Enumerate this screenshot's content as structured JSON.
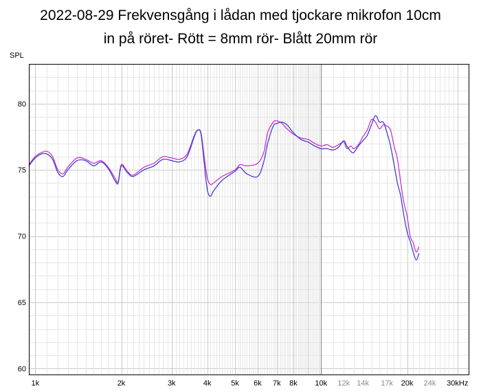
{
  "chart_data": {
    "type": "line",
    "title_lines": [
      "2022-08-29 Frekvensgång i lådan med tjockare mikrofon 10cm",
      "in på röret- Rött = 8mm rör- Blått 20mm rör"
    ],
    "ylabel": "SPL",
    "xlabel": "",
    "x_scale": "log",
    "xlim": [
      950,
      33000
    ],
    "ylim": [
      59.5,
      83
    ],
    "grid": true,
    "colors": {
      "red_series": "#cc33cc",
      "blue_series": "#4040cc",
      "grid_major": "#c8c8c8",
      "grid_minor": "#e6e6e6",
      "grid_10k": "#808080",
      "axis": "#000000"
    },
    "y_ticks": [
      {
        "value": 60,
        "label": "60"
      },
      {
        "value": 65,
        "label": "65"
      },
      {
        "value": 70,
        "label": "70"
      },
      {
        "value": 75,
        "label": "75"
      },
      {
        "value": 80,
        "label": "80"
      }
    ],
    "x_ticks": [
      {
        "value": 1000,
        "label": "1k",
        "style": "dark"
      },
      {
        "value": 2000,
        "label": "2k",
        "style": "dark"
      },
      {
        "value": 3000,
        "label": "3k",
        "style": "dark"
      },
      {
        "value": 4000,
        "label": "4k",
        "style": "dark"
      },
      {
        "value": 5000,
        "label": "5k",
        "style": "dark"
      },
      {
        "value": 6000,
        "label": "6k",
        "style": "dark"
      },
      {
        "value": 7000,
        "label": "7k",
        "style": "dark"
      },
      {
        "value": 8000,
        "label": "8k",
        "style": "dark"
      },
      {
        "value": 10000,
        "label": "10k",
        "style": "dark"
      },
      {
        "value": 12000,
        "label": "12k",
        "style": "grey"
      },
      {
        "value": 14000,
        "label": "14k",
        "style": "grey"
      },
      {
        "value": 17000,
        "label": "17k",
        "style": "grey"
      },
      {
        "value": 20000,
        "label": "20k",
        "style": "dark"
      },
      {
        "value": 24000,
        "label": "24k",
        "style": "grey"
      },
      {
        "value": 30000,
        "label": "30kHz",
        "style": "dark"
      }
    ],
    "series": [
      {
        "color_key": "red_series",
        "x": [
          950,
          1000,
          1050,
          1100,
          1150,
          1200,
          1250,
          1300,
          1400,
          1500,
          1600,
          1700,
          1800,
          1900,
          1950,
          2000,
          2100,
          2200,
          2400,
          2600,
          2800,
          3000,
          3200,
          3400,
          3600,
          3700,
          3800,
          3900,
          4000,
          4100,
          4200,
          4500,
          5000,
          5200,
          5500,
          6000,
          6300,
          6500,
          6800,
          7000,
          7300,
          7600,
          8000,
          8500,
          9000,
          9500,
          10000,
          10500,
          11000,
          11500,
          12000,
          12300,
          12700,
          13000,
          13500,
          14000,
          14500,
          15000,
          15500,
          16000,
          16500,
          17000,
          17500,
          18000,
          18500,
          19000,
          19500,
          20000,
          20500,
          21000,
          21500,
          22000
        ],
        "y": [
          75.4,
          76.0,
          76.3,
          76.4,
          76.0,
          75.0,
          74.7,
          75.2,
          75.9,
          75.8,
          75.5,
          75.7,
          75.2,
          74.4,
          74.1,
          75.4,
          74.9,
          74.6,
          75.2,
          75.5,
          76.0,
          75.9,
          75.8,
          76.2,
          77.6,
          78.0,
          77.8,
          76.0,
          74.4,
          73.9,
          74.0,
          74.5,
          75.0,
          75.4,
          75.3,
          75.5,
          76.3,
          77.8,
          78.6,
          78.7,
          78.5,
          78.1,
          77.7,
          77.4,
          77.3,
          77.0,
          76.8,
          76.9,
          76.7,
          76.9,
          77.1,
          76.6,
          76.8,
          76.6,
          76.9,
          77.5,
          78.0,
          78.8,
          78.6,
          78.1,
          78.4,
          78.3,
          78.0,
          76.8,
          75.8,
          74.0,
          72.5,
          71.5,
          70.0,
          69.5,
          68.8,
          69.2
        ]
      },
      {
        "color_key": "blue_series",
        "x": [
          950,
          1000,
          1050,
          1100,
          1150,
          1200,
          1250,
          1300,
          1400,
          1500,
          1600,
          1700,
          1800,
          1900,
          1950,
          2000,
          2100,
          2200,
          2400,
          2600,
          2800,
          3000,
          3200,
          3400,
          3600,
          3700,
          3800,
          3900,
          4000,
          4100,
          4200,
          4500,
          5000,
          5200,
          5500,
          6000,
          6300,
          6500,
          6800,
          7000,
          7300,
          7600,
          8000,
          8500,
          9000,
          9500,
          10000,
          10500,
          11000,
          11500,
          12000,
          12300,
          12700,
          13000,
          13500,
          14000,
          14500,
          15000,
          15500,
          16000,
          16500,
          17000,
          17500,
          18000,
          18500,
          19000,
          19500,
          20000,
          20500,
          21000,
          21500,
          22000
        ],
        "y": [
          75.3,
          75.9,
          76.2,
          76.2,
          75.8,
          74.8,
          74.5,
          75.0,
          75.7,
          75.7,
          75.3,
          75.6,
          75.1,
          74.2,
          74.0,
          75.3,
          74.8,
          74.5,
          75.0,
          75.3,
          75.8,
          75.7,
          75.6,
          76.0,
          77.5,
          78.0,
          77.7,
          75.5,
          73.5,
          73.0,
          73.4,
          74.2,
          74.9,
          75.2,
          74.7,
          74.5,
          75.6,
          77.0,
          78.3,
          78.5,
          78.6,
          78.4,
          77.8,
          77.3,
          77.1,
          76.8,
          76.6,
          76.6,
          76.5,
          76.7,
          77.2,
          76.8,
          76.4,
          76.3,
          76.8,
          77.2,
          77.6,
          78.4,
          79.1,
          78.6,
          78.6,
          77.8,
          76.8,
          75.4,
          74.0,
          73.0,
          71.5,
          70.3,
          69.6,
          68.8,
          68.2,
          68.7
        ]
      }
    ]
  }
}
